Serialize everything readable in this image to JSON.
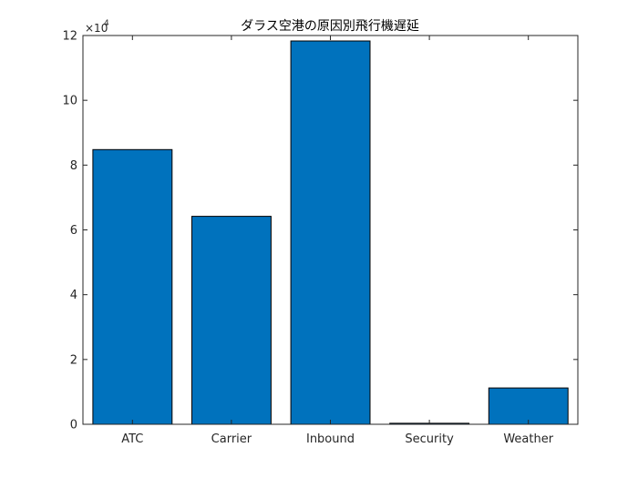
{
  "chart_data": {
    "type": "bar",
    "title": "ダラス空港の原因別飛行機遅延",
    "categories": [
      "ATC",
      "Carrier",
      "Inbound",
      "Security",
      "Weather"
    ],
    "values": [
      84800,
      64200,
      118300,
      300,
      11200
    ],
    "ylim": [
      0,
      120000
    ],
    "yticks": [
      0,
      20000,
      40000,
      60000,
      80000,
      100000,
      120000
    ],
    "ytick_labels": [
      "0",
      "2",
      "4",
      "6",
      "8",
      "10",
      "12"
    ],
    "y_exponent_base": "×10",
    "y_exponent_power": "4",
    "xlabel": "",
    "ylabel": "",
    "grid": false,
    "bar_color": "#0072BD",
    "edge_color": "#000000"
  }
}
